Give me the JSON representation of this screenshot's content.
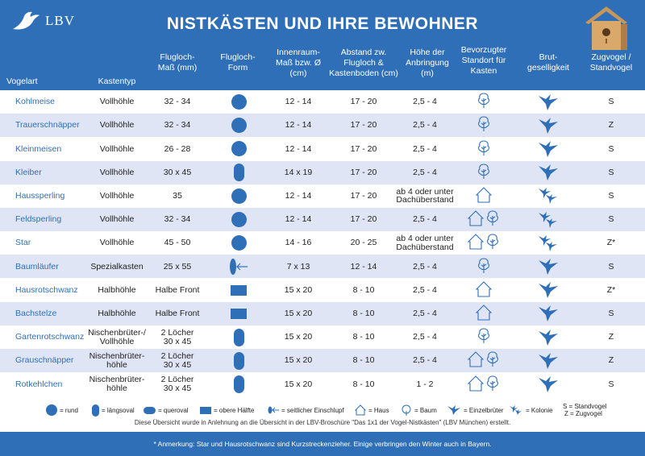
{
  "brand": "LBV",
  "title": "NISTKÄSTEN UND IHRE BEWOHNER",
  "columns": {
    "vogelart": "Vogelart",
    "kastentyp": "Kastentyp",
    "flugloch_mass": [
      "Flugloch-",
      "Maß (mm)"
    ],
    "flugloch_form": [
      "Flugloch-",
      "Form"
    ],
    "innenraum": [
      "Innenraum-",
      "Maß bzw. Ø",
      "(cm)"
    ],
    "abstand": [
      "Abstand zw.",
      "Flugloch &",
      "Kastenboden (cm)"
    ],
    "hoehe": [
      "Höhe der",
      "Anbringung",
      "(m)"
    ],
    "standort": [
      "Bevorzugter",
      "Standort für",
      "Kasten"
    ],
    "brut": [
      "Brut-",
      "geselligkeit"
    ],
    "zug": [
      "Zugvogel /",
      "Standvogel"
    ]
  },
  "rows": [
    {
      "name": "Kohlmeise",
      "typ": [
        "Vollhöhle"
      ],
      "mass": [
        "32 - 34"
      ],
      "form": "rund",
      "innen": "12 - 14",
      "abstand": "17 - 20",
      "hoehe": [
        "2,5 - 4"
      ],
      "standort": [
        "baum"
      ],
      "brut": "einzel",
      "zug": "S"
    },
    {
      "name": "Trauerschnäpper",
      "typ": [
        "Vollhöhle"
      ],
      "mass": [
        "32 - 34"
      ],
      "form": "rund",
      "innen": "12 - 14",
      "abstand": "17 - 20",
      "hoehe": [
        "2,5 - 4"
      ],
      "standort": [
        "baum"
      ],
      "brut": "einzel",
      "zug": "Z"
    },
    {
      "name": "Kleinmeisen",
      "typ": [
        "Vollhöhle"
      ],
      "mass": [
        "26 - 28"
      ],
      "form": "rund",
      "innen": "12 - 14",
      "abstand": "17 - 20",
      "hoehe": [
        "2,5 - 4"
      ],
      "standort": [
        "baum"
      ],
      "brut": "einzel",
      "zug": "S"
    },
    {
      "name": "Kleiber",
      "typ": [
        "Vollhöhle"
      ],
      "mass": [
        "30 x 45"
      ],
      "form": "laengs",
      "innen": "14 x 19",
      "abstand": "17 - 20",
      "hoehe": [
        "2,5 - 4"
      ],
      "standort": [
        "baum"
      ],
      "brut": "einzel",
      "zug": "S"
    },
    {
      "name": "Haussperling",
      "typ": [
        "Vollhöhle"
      ],
      "mass": [
        "35"
      ],
      "form": "rund",
      "innen": "12 - 14",
      "abstand": "17 - 20",
      "hoehe": [
        "ab 4 oder unter",
        "Dachüberstand"
      ],
      "standort": [
        "haus"
      ],
      "brut": "kolonie",
      "zug": "S"
    },
    {
      "name": "Feldsperling",
      "typ": [
        "Vollhöhle"
      ],
      "mass": [
        "32 - 34"
      ],
      "form": "rund",
      "innen": "12 - 14",
      "abstand": "17 - 20",
      "hoehe": [
        "2,5 - 4"
      ],
      "standort": [
        "haus",
        "baum"
      ],
      "brut": "kolonie",
      "zug": "S"
    },
    {
      "name": "Star",
      "typ": [
        "Vollhöhle"
      ],
      "mass": [
        "45 - 50"
      ],
      "form": "rund",
      "innen": "14 - 16",
      "abstand": "20 - 25",
      "hoehe": [
        "ab 4 oder unter",
        "Dachüberstand"
      ],
      "standort": [
        "haus",
        "baum"
      ],
      "brut": "kolonie",
      "zug": "Z*"
    },
    {
      "name": "Baumläufer",
      "typ": [
        "Spezialkasten"
      ],
      "mass": [
        "25 x 55"
      ],
      "form": "seitlich",
      "innen": "7 x 13",
      "abstand": "12 - 14",
      "hoehe": [
        "2,5 - 4"
      ],
      "standort": [
        "baum"
      ],
      "brut": "einzel",
      "zug": "S"
    },
    {
      "name": "Hausrotschwanz",
      "typ": [
        "Halbhöhle"
      ],
      "mass": [
        "Halbe Front"
      ],
      "form": "obere",
      "innen": "15 x 20",
      "abstand": "8 - 10",
      "hoehe": [
        "2,5 - 4"
      ],
      "standort": [
        "haus"
      ],
      "brut": "einzel",
      "zug": "Z*"
    },
    {
      "name": "Bachstelze",
      "typ": [
        "Halbhöhle"
      ],
      "mass": [
        "Halbe Front"
      ],
      "form": "obere",
      "innen": "15 x 20",
      "abstand": "8 - 10",
      "hoehe": [
        "2,5 - 4"
      ],
      "standort": [
        "haus"
      ],
      "brut": "einzel",
      "zug": "S"
    },
    {
      "name": "Gartenrotschwanz",
      "typ": [
        "Nischenbrüter-/",
        "Vollhöhle"
      ],
      "mass": [
        "2 Löcher",
        "30 x 45"
      ],
      "form": "laengs",
      "innen": "15 x 20",
      "abstand": "8 - 10",
      "hoehe": [
        "2,5 - 4"
      ],
      "standort": [
        "baum"
      ],
      "brut": "einzel",
      "zug": "Z"
    },
    {
      "name": "Grauschnäpper",
      "typ": [
        "Nischenbrüter-",
        "höhle"
      ],
      "mass": [
        "2 Löcher",
        "30 x 45"
      ],
      "form": "laengs",
      "innen": "15 x 20",
      "abstand": "8 - 10",
      "hoehe": [
        "2,5 - 4"
      ],
      "standort": [
        "haus",
        "baum"
      ],
      "brut": "einzel",
      "zug": "Z"
    },
    {
      "name": "Rotkehlchen",
      "typ": [
        "Nischenbrüter-",
        "höhle"
      ],
      "mass": [
        "2 Löcher",
        "30 x 45"
      ],
      "form": "laengs",
      "innen": "15 x 20",
      "abstand": "8 - 10",
      "hoehe": [
        "1 - 2"
      ],
      "standort": [
        "haus",
        "baum"
      ],
      "brut": "einzel",
      "zug": "S"
    }
  ],
  "legend": {
    "rund": "= rund",
    "laengs": "= längsoval",
    "quer": "= queroval",
    "obere": "= obere Hälfte",
    "seitlich": "= seitlicher Einschlupf",
    "haus": "= Haus",
    "baum": "= Baum",
    "einzel": "= Einzelbrüter",
    "kolonie": "= Kolonie",
    "stand": "S = Standvogel",
    "zug": "Z = Zugvogel"
  },
  "source": "Diese Übersicht wurde in Anlehnung an die Übersicht in der LBV-Broschüre \"Das 1x1 der Vogel-Nistkästen\" (LBV München) erstellt.",
  "footnote": "* Anmerkung: Star und Hausrotschwanz sind Kurzstreckenzieher. Einige verbringen den Winter auch in Bayern.",
  "colors": {
    "primary": "#2f6fb7",
    "shade": "#dfe5f4"
  }
}
